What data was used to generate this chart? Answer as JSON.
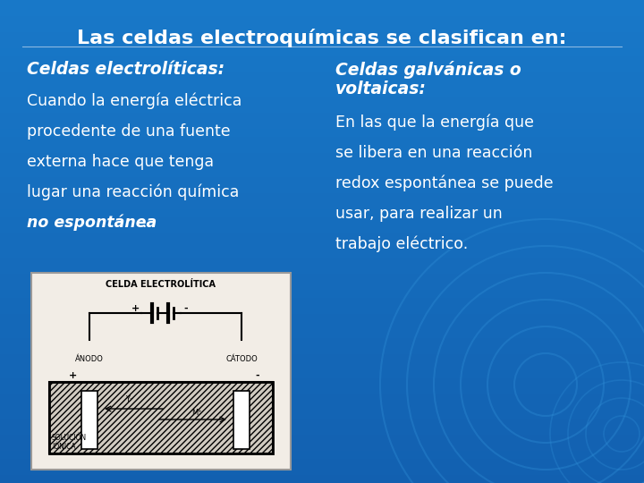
{
  "bg_color": "#1878c8",
  "title": "Las celdas electroquímicas se clasifican en:",
  "title_color": "white",
  "title_fontsize": 16,
  "col1_heading": "Celdas electrolíticas:",
  "col1_lines": [
    "Cuando la energía eléctrica",
    "procedente de una fuente",
    "externa hace que tenga",
    "lugar una reacción química",
    "no espontánea."
  ],
  "col1_bold_italic_line": 4,
  "col2_heading_line1": "Celdas galvánicas o",
  "col2_heading_line2": "voltaicas:",
  "col2_lines": [
    "En las que la energía que",
    "se libera en una reacción",
    "redox espontánea se puede",
    "usar, para realizar un",
    "trabajo eléctrico."
  ],
  "text_color": "white",
  "heading_fontsize": 13.5,
  "body_fontsize": 12.5,
  "ripple_color": "#2b8ce0",
  "diagram_bg": "#f0ede8",
  "diagram_border": "#aaaaaa"
}
